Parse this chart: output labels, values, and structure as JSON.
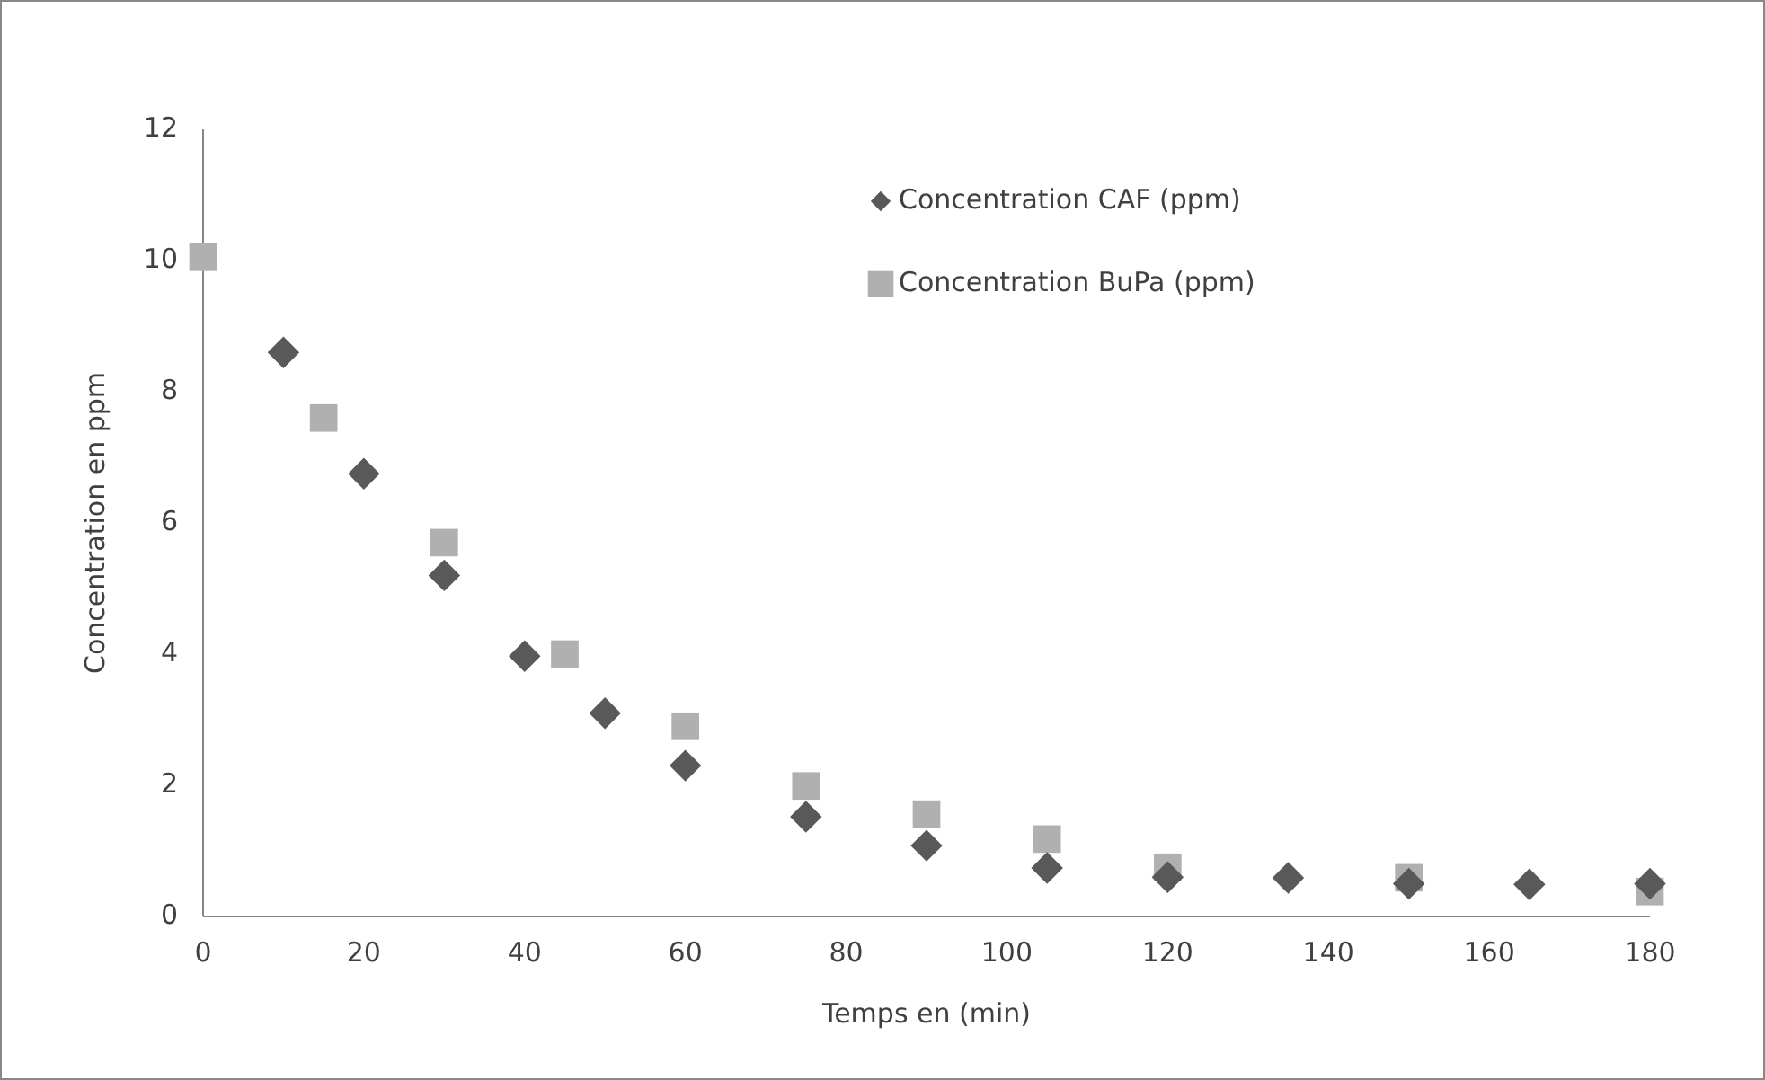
{
  "chart_data": {
    "type": "scatter",
    "xlabel": "Temps en (min)",
    "ylabel": "Concentration en ppm",
    "xlim": [
      0,
      180
    ],
    "xticks": [
      0,
      20,
      40,
      60,
      80,
      100,
      120,
      140,
      160,
      180
    ],
    "ylim": [
      0,
      12
    ],
    "yticks": [
      0,
      2,
      4,
      6,
      8,
      10,
      12
    ],
    "grid": false,
    "legend": "top right",
    "series": [
      {
        "name": "Concentration CAF (ppm)",
        "color": "#595959",
        "marker": "diamond",
        "x": [
          10,
          20,
          30,
          40,
          50,
          60,
          75,
          90,
          105,
          120,
          135,
          150,
          165,
          180
        ],
        "values": [
          8.6,
          6.75,
          5.2,
          3.97,
          3.1,
          2.3,
          1.52,
          1.08,
          0.74,
          0.6,
          0.59,
          0.5,
          0.49,
          0.5
        ]
      },
      {
        "name": "Concentration BuPa (ppm)",
        "color": "#b0b0b0",
        "marker": "square",
        "x": [
          0,
          15,
          30,
          45,
          60,
          75,
          90,
          105,
          120,
          150,
          180
        ],
        "values": [
          10.05,
          7.6,
          5.7,
          4.0,
          2.9,
          1.99,
          1.56,
          1.18,
          0.75,
          0.59,
          0.38
        ]
      }
    ]
  }
}
